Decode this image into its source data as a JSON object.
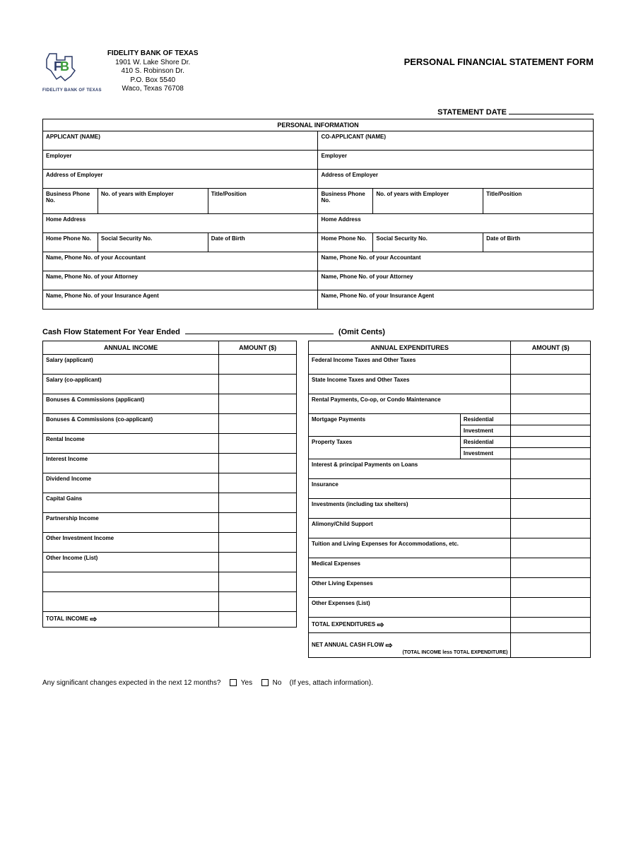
{
  "header": {
    "bank_name": "FIDELITY BANK OF TEXAS",
    "addr1": "1901 W. Lake Shore Dr.",
    "addr2": "410 S. Robinson Dr.",
    "addr3": "P.O. Box 5540",
    "addr4": "Waco, Texas 76708",
    "logo_caption": "FIDELITY BANK OF TEXAS",
    "form_title": "PERSONAL FINANCIAL STATEMENT FORM",
    "statement_date_label": "STATEMENT DATE"
  },
  "personal_info": {
    "section_title": "PERSONAL INFORMATION",
    "applicant_label": "APPLICANT (NAME)",
    "coapplicant_label": "CO-APPLICANT (NAME)",
    "employer": "Employer",
    "addr_employer": "Address of Employer",
    "bus_phone": "Business Phone No.",
    "years_employer": "No. of years with Employer",
    "title_pos": "Title/Position",
    "home_addr": "Home Address",
    "home_phone": "Home Phone No.",
    "ssn": "Social Security No.",
    "dob": "Date of Birth",
    "accountant": "Name, Phone No. of your Accountant",
    "attorney": "Name, Phone No. of your Attorney",
    "insurance": "Name, Phone No. of your Insurance Agent"
  },
  "cashflow": {
    "title_prefix": "Cash Flow Statement For Year Ended",
    "title_suffix": "(Omit Cents)",
    "income_header": "ANNUAL INCOME",
    "amount_header": "AMOUNT ($)",
    "expend_header": "ANNUAL EXPENDITURES",
    "income_items": [
      "Salary (applicant)",
      "Salary (co-applicant)",
      "Bonuses & Commissions (applicant)",
      "Bonuses & Commissions (co-applicant)",
      "Rental Income",
      "Interest Income",
      "Dividend Income",
      "Capital Gains",
      "Partnership Income",
      "Other Investment Income",
      "Other Income (List)",
      "",
      ""
    ],
    "expend_items": [
      {
        "label": "Federal Income Taxes and Other Taxes"
      },
      {
        "label": "State Income Taxes and Other Taxes"
      },
      {
        "label": "Rental Payments, Co-op, or Condo Maintenance"
      },
      {
        "label": "Mortgage Payments",
        "subs": [
          "Residential",
          "Investment"
        ]
      },
      {
        "label": "Property Taxes",
        "subs": [
          "Residential",
          "Investment"
        ]
      },
      {
        "label": "Interest & principal Payments on Loans"
      },
      {
        "label": "Insurance"
      },
      {
        "label": "Investments (including tax shelters)"
      },
      {
        "label": "Alimony/Child Support"
      },
      {
        "label": "Tuition and Living Expenses for Accommodations, etc."
      },
      {
        "label": "Medical Expenses"
      },
      {
        "label": "Other Living Expenses"
      },
      {
        "label": "Other Expenses (List)"
      }
    ],
    "total_income": "TOTAL INCOME",
    "total_expend": "TOTAL EXPENDITURES",
    "net_flow": "NET ANNUAL CASH FLOW",
    "net_note": "(TOTAL INCOME less TOTAL EXPENDITURE)"
  },
  "footer": {
    "question": "Any significant changes expected in the next 12 months?",
    "yes": "Yes",
    "no": "No",
    "if_yes": "(If yes, attach information)."
  },
  "colors": {
    "logo_blue": "#2b3a67",
    "logo_green": "#3a9b3a",
    "border": "#000000",
    "background": "#ffffff"
  }
}
